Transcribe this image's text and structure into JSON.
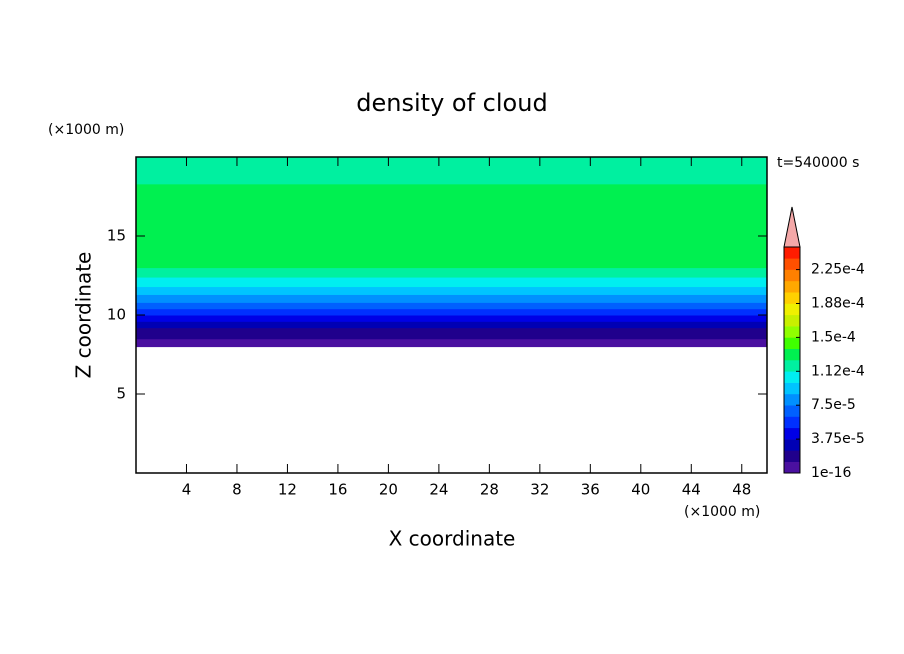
{
  "chart_data": {
    "type": "contour",
    "title": "density of cloud",
    "x_label": "X coordinate",
    "y_label": "Z coordinate",
    "x_unit": "(×1000 m)",
    "y_unit": "(×1000 m)",
    "time_label": "t=540000 s",
    "xlim": [
      0,
      50
    ],
    "xticks": [
      4,
      8,
      12,
      16,
      20,
      24,
      28,
      32,
      36,
      40,
      44,
      48
    ],
    "ylim": [
      0,
      20
    ],
    "yticks": [
      5,
      10,
      15
    ],
    "z_edges": [
      8.0,
      8.5,
      8.8,
      9.2,
      9.6,
      10.0,
      10.4,
      10.8,
      11.3,
      11.8,
      12.4,
      13.0,
      18.3,
      20.0
    ],
    "values": [
      6e-06,
      2e-05,
      2e-05,
      3e-05,
      4.5e-05,
      5.5e-05,
      7e-05,
      8e-05,
      9.5e-05,
      0.000108,
      0.00012,
      0.00013,
      0.00012
    ],
    "clim": [
      1e-16,
      0.00025
    ],
    "colors": [
      "#4a10a0",
      "#20008c",
      "#0000b4",
      "#0000e6",
      "#0030ff",
      "#0060ff",
      "#0090ff",
      "#00c4ff",
      "#00eef0",
      "#00f0a0",
      "#00f050",
      "#40ff00",
      "#90ff00",
      "#c8f000",
      "#f0f000",
      "#ffd000",
      "#ffa800",
      "#ff8000",
      "#ff5000",
      "#ff1c00"
    ],
    "extend_color": "#f4a8a8",
    "cticks": [
      {
        "value": 1e-16,
        "label": "1e-16"
      },
      {
        "value": 3.75e-05,
        "label": "3.75e-5"
      },
      {
        "value": 7.5e-05,
        "label": "7.5e-5"
      },
      {
        "value": 0.0001125,
        "label": "1.12e-4"
      },
      {
        "value": 0.00015,
        "label": "1.5e-4"
      },
      {
        "value": 0.0001875,
        "label": "1.88e-4"
      },
      {
        "value": 0.000225,
        "label": "2.25e-4"
      }
    ]
  }
}
